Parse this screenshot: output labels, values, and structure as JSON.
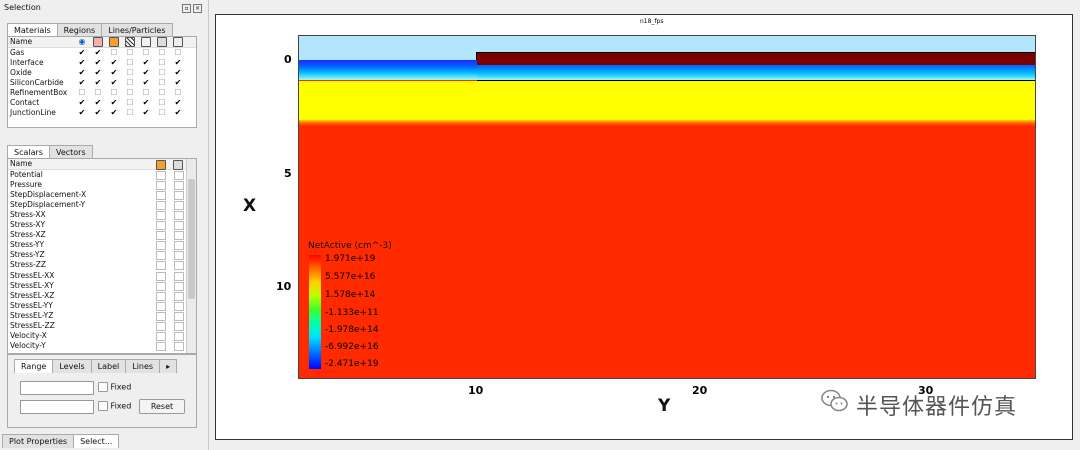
{
  "panel": {
    "title": "Selection",
    "material_tabs": [
      "Materials",
      "Regions",
      "Lines/Particles"
    ],
    "materials_header": "Name",
    "materials": [
      {
        "name": "Gas",
        "checks": [
          true,
          true,
          false,
          false,
          false,
          false,
          false
        ]
      },
      {
        "name": "Interface",
        "checks": [
          true,
          true,
          true,
          false,
          true,
          false,
          true
        ]
      },
      {
        "name": "Oxide",
        "checks": [
          true,
          true,
          true,
          false,
          true,
          false,
          true
        ]
      },
      {
        "name": "SiliconCarbide",
        "checks": [
          true,
          true,
          true,
          false,
          true,
          false,
          true
        ]
      },
      {
        "name": "RefinementBox",
        "checks": [
          false,
          false,
          false,
          false,
          false,
          false,
          false
        ]
      },
      {
        "name": "Contact",
        "checks": [
          true,
          true,
          true,
          false,
          true,
          false,
          true
        ]
      },
      {
        "name": "JunctionLine",
        "checks": [
          true,
          true,
          true,
          false,
          true,
          false,
          true
        ]
      }
    ],
    "scalar_tabs": [
      "Scalars",
      "Vectors"
    ],
    "scalars_header": "Name",
    "scalars": [
      "Potential",
      "Pressure",
      "StepDisplacement-X",
      "StepDisplacement-Y",
      "Stress-XX",
      "Stress-XY",
      "Stress-XZ",
      "Stress-YY",
      "Stress-YZ",
      "Stress-ZZ",
      "StressEL-XX",
      "StressEL-XY",
      "StressEL-XZ",
      "StressEL-YY",
      "StressEL-YZ",
      "StressEL-ZZ",
      "Velocity-X",
      "Velocity-Y"
    ],
    "range_tabs": [
      "Range",
      "Levels",
      "Label",
      "Lines"
    ],
    "fixed_label": "Fixed",
    "reset_label": "Reset",
    "bottom_tabs": [
      "Plot Properties",
      "Select..."
    ]
  },
  "plot": {
    "title": "n18_fps",
    "xlabel": "X",
    "ylabel": "Y",
    "x_ticks": [
      "0",
      "5",
      "10"
    ],
    "y_ticks": [
      "10",
      "20",
      "30"
    ],
    "legend_title": "NetActive (cm^-3)",
    "legend_values": [
      "1.971e+19",
      "5.577e+16",
      "1.578e+14",
      "-1.133e+11",
      "-1.978e+14",
      "-6.992e+16",
      "-2.471e+19"
    ],
    "colors": {
      "gas": "#b3e5fc",
      "contact": "#7b0000",
      "oxide_bottom": "#1a2cff",
      "yellow": "#ffff00",
      "red": "#ff2a00"
    }
  },
  "watermark": "半导体器件仿真"
}
